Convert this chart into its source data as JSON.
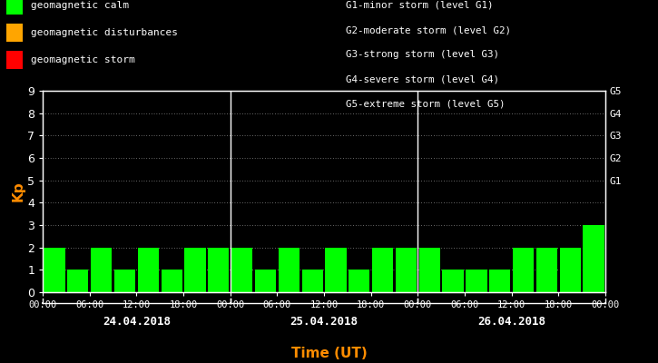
{
  "bg_color": "#000000",
  "bar_color": "#00ff00",
  "axis_color": "#ffffff",
  "grid_color": "#ffffff",
  "kp_label_color": "#ff8c00",
  "legend_items": [
    {
      "label": "geomagnetic calm",
      "color": "#00ff00"
    },
    {
      "label": "geomagnetic disturbances",
      "color": "#ffa500"
    },
    {
      "label": "geomagnetic storm",
      "color": "#ff0000"
    }
  ],
  "right_legend_lines": [
    "G1-minor storm (level G1)",
    "G2-moderate storm (level G2)",
    "G3-strong storm (level G3)",
    "G4-severe storm (level G4)",
    "G5-extreme storm (level G5)"
  ],
  "right_axis_labels": [
    "G1",
    "G2",
    "G3",
    "G4",
    "G5"
  ],
  "right_axis_positions": [
    5,
    6,
    7,
    8,
    9
  ],
  "days": [
    "24.04.2018",
    "25.04.2018",
    "26.04.2018"
  ],
  "kp_values": [
    [
      2,
      1,
      2,
      1,
      2,
      1,
      2,
      2
    ],
    [
      2,
      1,
      2,
      1,
      2,
      1,
      2,
      2
    ],
    [
      2,
      1,
      1,
      1,
      2,
      2,
      2,
      3
    ]
  ],
  "ylim": [
    0,
    9
  ],
  "yticks": [
    0,
    1,
    2,
    3,
    4,
    5,
    6,
    7,
    8,
    9
  ],
  "time_ticks": [
    "00:00",
    "06:00",
    "12:00",
    "18:00"
  ],
  "xlabel": "Time (UT)",
  "ylabel": "Kp",
  "n_per_day": 8
}
